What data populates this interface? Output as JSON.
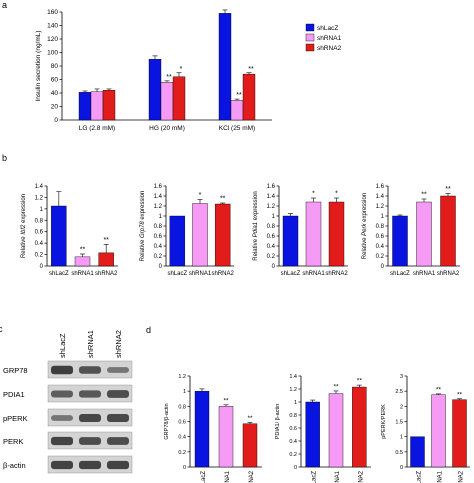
{
  "colors": {
    "shLacZ": "#0a14e0",
    "shRNA1": "#f59af5",
    "shRNA2": "#e21b1b",
    "axis": "#000000",
    "band": "#2b2b2b",
    "blot_bg": "#d4d4d4"
  },
  "panel_labels": {
    "a": "a",
    "b": "b",
    "c": "c",
    "d": "d"
  },
  "legend": [
    "shLacZ",
    "shRNA1",
    "shRNA2"
  ],
  "western_blot": {
    "lane_labels": [
      "shLacZ",
      "shRNA1",
      "shRNA2"
    ],
    "rows": [
      {
        "label": "GRP78",
        "intensity": [
          0.9,
          0.7,
          0.35
        ]
      },
      {
        "label": "PDIA1",
        "intensity": [
          0.6,
          0.65,
          0.75
        ]
      },
      {
        "label": "pPERK",
        "intensity": [
          0.35,
          0.8,
          0.8
        ]
      },
      {
        "label": "PERK",
        "intensity": [
          0.85,
          0.75,
          0.75
        ]
      },
      {
        "label": "β-actin",
        "intensity": [
          0.85,
          0.85,
          0.85
        ]
      }
    ]
  },
  "chart_data": [
    {
      "id": "a",
      "type": "bar",
      "ylabel": "Insulin secretion (ng/mL)",
      "ylim": [
        0,
        160
      ],
      "yticks": [
        0,
        20,
        40,
        60,
        80,
        100,
        120,
        140,
        160
      ],
      "categories": [
        "LG (2.8 mM)",
        "HG (20 mM)",
        "KCl (25 mM)"
      ],
      "series": [
        {
          "name": "shLacZ",
          "values": [
            41,
            90,
            158
          ],
          "errors": [
            2,
            5,
            5
          ]
        },
        {
          "name": "shRNA1",
          "values": [
            42,
            56,
            29
          ],
          "errors": [
            4,
            2,
            2
          ]
        },
        {
          "name": "shRNA2",
          "values": [
            44,
            64,
            68
          ],
          "errors": [
            2,
            6,
            2
          ]
        }
      ],
      "annotations": [
        [
          "",
          "",
          ""
        ],
        [
          "",
          "**",
          "**"
        ],
        [
          "",
          "*",
          "**"
        ]
      ]
    },
    {
      "id": "b1",
      "type": "bar",
      "ylabel": "Relative Ibf2 expression",
      "ylim": [
        0,
        1.4
      ],
      "yticks": [
        0,
        0.2,
        0.4,
        0.6,
        0.8,
        1,
        1.2,
        1.4
      ],
      "categories": [
        "shLacZ",
        "shRNA1",
        "shRNA2"
      ],
      "values": [
        1.05,
        0.16,
        0.23
      ],
      "errors": [
        0.25,
        0.05,
        0.15
      ],
      "annotations": [
        "",
        "**",
        "**"
      ]
    },
    {
      "id": "b2",
      "type": "bar",
      "ylabel": "Relative Grp78 expression",
      "ylim": [
        0,
        1.6
      ],
      "yticks": [
        0,
        0.2,
        0.4,
        0.6,
        0.8,
        1,
        1.2,
        1.4,
        1.6
      ],
      "categories": [
        "shLacZ",
        "shRNA1",
        "shRNA2"
      ],
      "values": [
        1.0,
        1.25,
        1.24
      ],
      "errors": [
        0.0,
        0.08,
        0.02
      ],
      "annotations": [
        "",
        "*",
        "**"
      ]
    },
    {
      "id": "b3",
      "type": "bar",
      "ylabel": "Relative Pdia1 expression",
      "ylim": [
        0,
        1.6
      ],
      "yticks": [
        0,
        0.2,
        0.4,
        0.6,
        0.8,
        1,
        1.2,
        1.4,
        1.6
      ],
      "categories": [
        "shLacZ",
        "shRNA1",
        "shRNA2"
      ],
      "values": [
        1.0,
        1.28,
        1.28
      ],
      "errors": [
        0.05,
        0.08,
        0.08
      ],
      "annotations": [
        "",
        "*",
        "*"
      ]
    },
    {
      "id": "b4",
      "type": "bar",
      "ylabel": "Relative Perk expression",
      "ylim": [
        0,
        1.6
      ],
      "yticks": [
        0,
        0.2,
        0.4,
        0.6,
        0.8,
        1,
        1.2,
        1.4,
        1.6
      ],
      "categories": [
        "shLacZ",
        "shRNA1",
        "shRNA2"
      ],
      "values": [
        1.0,
        1.28,
        1.4
      ],
      "errors": [
        0.02,
        0.06,
        0.05
      ],
      "annotations": [
        "",
        "**",
        "**"
      ]
    },
    {
      "id": "d1",
      "type": "bar",
      "ylabel": "GRP78/β-actin",
      "ylim": [
        0,
        1.2
      ],
      "yticks": [
        0,
        0.2,
        0.4,
        0.6,
        0.8,
        1,
        1.2
      ],
      "categories": [
        "shLacZ",
        "shRNA1",
        "shRNA2"
      ],
      "values": [
        1.0,
        0.8,
        0.57
      ],
      "errors": [
        0.03,
        0.02,
        0.02
      ],
      "annotations": [
        "",
        "**",
        "**"
      ]
    },
    {
      "id": "d2",
      "type": "bar",
      "ylabel": "PDIA1/ β-actin",
      "ylim": [
        0,
        1.4
      ],
      "yticks": [
        0,
        0.2,
        0.4,
        0.6,
        0.8,
        1,
        1.2,
        1.4
      ],
      "categories": [
        "shLacZ",
        "shRNA1",
        "shRNA2"
      ],
      "values": [
        1.0,
        1.13,
        1.23
      ],
      "errors": [
        0.03,
        0.04,
        0.03
      ],
      "annotations": [
        "",
        "**",
        "**"
      ]
    },
    {
      "id": "d3",
      "type": "bar",
      "ylabel": "pPERK/PERK",
      "ylim": [
        0,
        3
      ],
      "yticks": [
        0,
        0.5,
        1,
        1.5,
        2,
        2.5,
        3
      ],
      "categories": [
        "shLacZ",
        "shRNA1",
        "shRNA2"
      ],
      "values": [
        1.0,
        2.38,
        2.22
      ],
      "errors": [
        0.0,
        0.03,
        0.03
      ],
      "annotations": [
        "",
        "**",
        "**"
      ]
    }
  ]
}
